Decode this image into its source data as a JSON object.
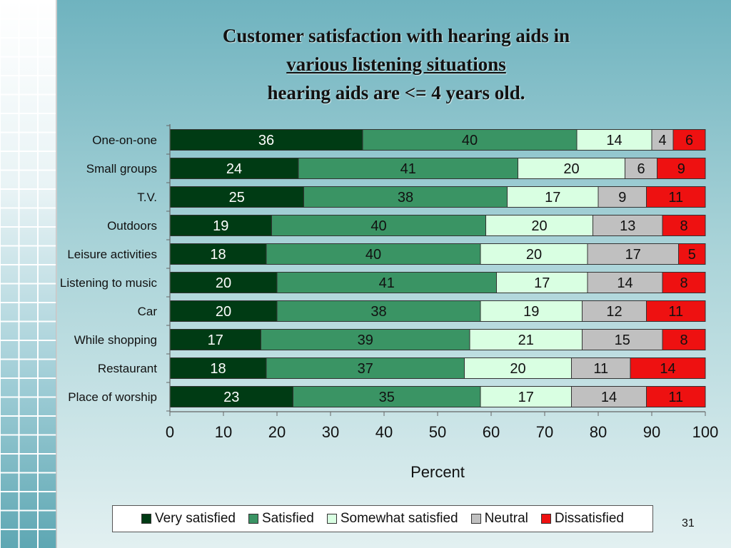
{
  "title": {
    "line1": "Customer satisfaction with hearing aids in",
    "line2": "various listening situations",
    "line3": "hearing aids are <= 4 years old."
  },
  "slide_number": "31",
  "colors": {
    "very_satisfied": "#003b14",
    "satisfied": "#3a9464",
    "somewhat_satisfied": "#d9ffe2",
    "neutral": "#c0c0c0",
    "dissatisfied": "#ee1111"
  },
  "chart_data": {
    "type": "bar",
    "orientation": "horizontal",
    "stacked": true,
    "xlabel": "Percent",
    "xlim": [
      0,
      100
    ],
    "xticks": [
      0,
      10,
      20,
      30,
      40,
      50,
      60,
      70,
      80,
      90,
      100
    ],
    "categories": [
      "One-on-one",
      "Small groups",
      "T.V.",
      "Outdoors",
      "Leisure activities",
      "Listening to music",
      "Car",
      "While shopping",
      "Restaurant",
      "Place of worship"
    ],
    "series": [
      {
        "name": "Very satisfied",
        "color": "#003b14",
        "label_color": "#ffffff",
        "values": [
          36,
          24,
          25,
          19,
          18,
          20,
          20,
          17,
          18,
          23
        ]
      },
      {
        "name": "Satisfied",
        "color": "#3a9464",
        "label_color": "#111111",
        "values": [
          40,
          41,
          38,
          40,
          40,
          41,
          38,
          39,
          37,
          35
        ]
      },
      {
        "name": "Somewhat satisfied",
        "color": "#d9ffe2",
        "label_color": "#111111",
        "values": [
          14,
          20,
          17,
          20,
          20,
          17,
          19,
          21,
          20,
          17
        ]
      },
      {
        "name": "Neutral",
        "color": "#c0c0c0",
        "label_color": "#111111",
        "values": [
          4,
          6,
          9,
          13,
          17,
          14,
          12,
          15,
          11,
          14
        ]
      },
      {
        "name": "Dissatisfied",
        "color": "#ee1111",
        "label_color": "#111111",
        "values": [
          6,
          9,
          11,
          8,
          5,
          8,
          11,
          8,
          14,
          11
        ]
      }
    ],
    "legend_position": "bottom"
  }
}
